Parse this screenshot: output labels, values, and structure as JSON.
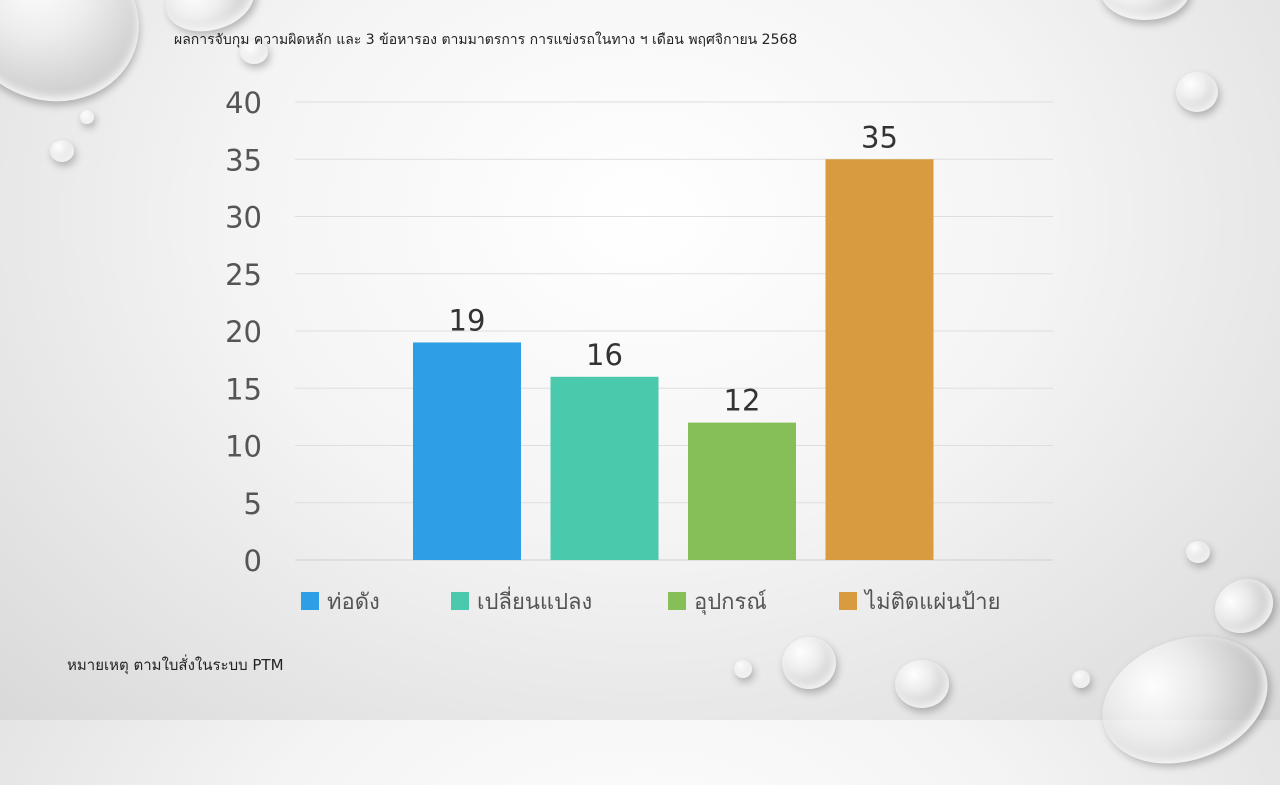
{
  "slide": {
    "title": "ผลการจับกุม ความผิดหลัก และ 3 ข้อหารอง ตามมาตรการ การแข่งรถในทาง ฯ  เดือน  พฤศจิกายน 2568",
    "note": "หมายเหตุ ตามใบสั่งในระบบ PTM"
  },
  "chart_data": {
    "type": "bar",
    "categories": [
      "ท่อดัง",
      "เปลี่ยนแปลง",
      "อุปกรณ์",
      "ไม่ติดแผ่นป้าย"
    ],
    "values": [
      19,
      16,
      12,
      35
    ],
    "colors": [
      "#2e9fe6",
      "#4ac9ad",
      "#86bf57",
      "#d89b3f"
    ],
    "ylim": [
      0,
      40
    ],
    "yticks": [
      0,
      5,
      10,
      15,
      20,
      25,
      30,
      35,
      40
    ],
    "grid": true,
    "data_labels": true,
    "legend_position": "bottom"
  }
}
